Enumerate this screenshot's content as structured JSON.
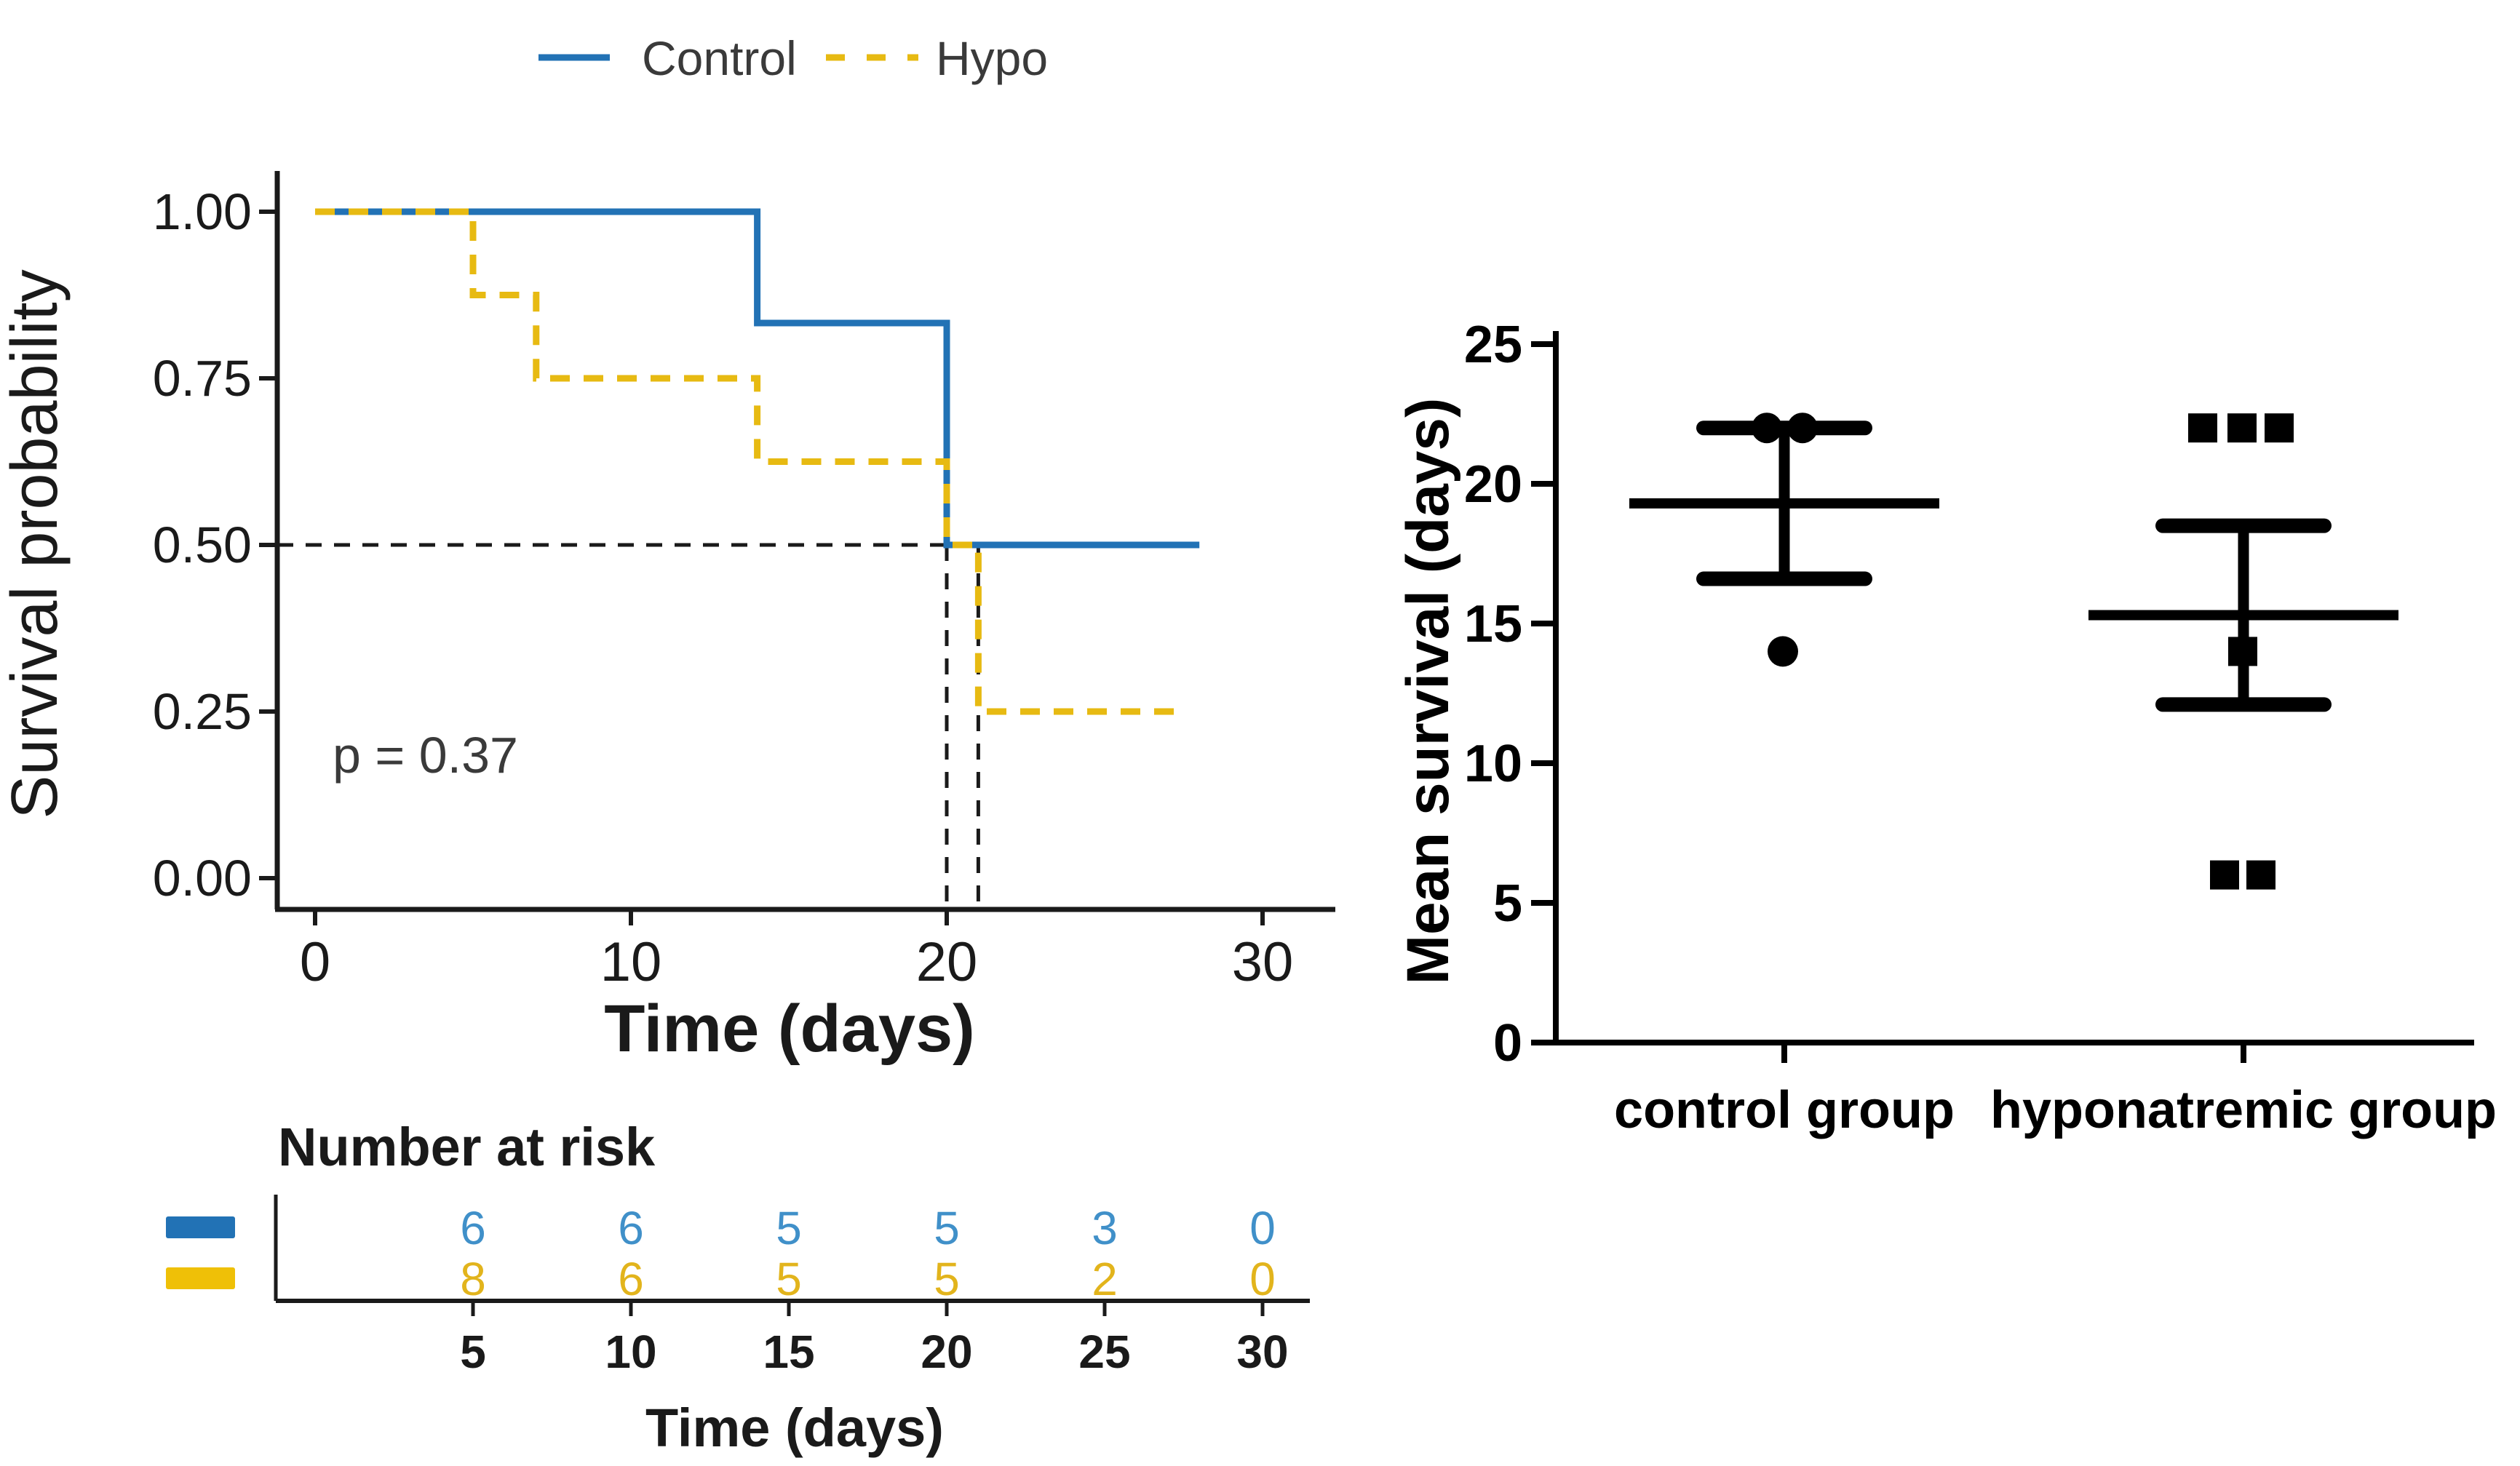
{
  "figure": {
    "background": "#ffffff"
  },
  "colors": {
    "control_blue": "#2272B5",
    "hypo_yellow": "#E7BA12",
    "risk_blue_number": "#4090C9",
    "risk_yellow_number": "#E2B41C",
    "risk_swatch_blue": "#2272B5",
    "risk_swatch_yellow": "#EFC007",
    "axis_black": "#1a1a1a",
    "legend_text": "#3a3a3a",
    "marker_black": "#000000"
  },
  "chart_data": [
    {
      "type": "line",
      "subtype": "kaplan-meier-survival",
      "legend": {
        "position": "top",
        "entries": [
          {
            "label": "Control",
            "color": "#2272B5",
            "style": "solid"
          },
          {
            "label": "Hypo",
            "color": "#E7BA12",
            "style": "dashed"
          }
        ]
      },
      "xlabel": "Time (days)",
      "ylabel": "Survival probability",
      "xlim": [
        0,
        30
      ],
      "ylim": [
        0,
        1
      ],
      "xticks": [
        0,
        10,
        20,
        30
      ],
      "xtick_labels": [
        "0",
        "10",
        "20",
        "30"
      ],
      "yticks": [
        1.0,
        0.75,
        0.5,
        0.25,
        0.0
      ],
      "ytick_labels": [
        "1.00",
        "0.75",
        "0.50",
        "0.25",
        "0.00"
      ],
      "grid": false,
      "annotation": {
        "text": "p = 0.37"
      },
      "median_reference": {
        "y": 0.5,
        "x_verticals": [
          20,
          21
        ]
      },
      "series": [
        {
          "name": "Control",
          "color": "#2272B5",
          "dash": false,
          "steps": [
            [
              0,
              1
            ],
            [
              14,
              1
            ],
            [
              14,
              0.833
            ],
            [
              20,
              0.833
            ],
            [
              20,
              0.5
            ],
            [
              28,
              0.5
            ]
          ]
        },
        {
          "name": "Hypo",
          "color": "#E7BA12",
          "dash": true,
          "steps": [
            [
              0,
              1
            ],
            [
              5,
              1
            ],
            [
              5,
              0.875
            ],
            [
              7,
              0.875
            ],
            [
              7,
              0.75
            ],
            [
              14,
              0.75
            ],
            [
              14,
              0.625
            ],
            [
              20,
              0.625
            ],
            [
              20,
              0.5
            ],
            [
              21,
              0.5
            ],
            [
              21,
              0.25
            ],
            [
              27.5,
              0.25
            ]
          ]
        }
      ],
      "risk_table": {
        "title": "Number at risk",
        "xlabel": "Time (days)",
        "times": [
          5,
          10,
          15,
          20,
          25,
          30
        ],
        "time_labels": [
          "5",
          "10",
          "15",
          "20",
          "25",
          "30"
        ],
        "rows": [
          {
            "name": "Control",
            "number_color": "#4090C9",
            "swatch_color": "#2272B5",
            "values": [
              "6",
              "6",
              "5",
              "5",
              "3",
              "0"
            ]
          },
          {
            "name": "Hypo",
            "number_color": "#E2B41C",
            "swatch_color": "#EFC007",
            "values": [
              "8",
              "6",
              "5",
              "5",
              "2",
              "0"
            ]
          }
        ]
      }
    },
    {
      "type": "scatter",
      "subtype": "column-scatter-mean-sem",
      "ylabel": "Mean survival (days)",
      "ylim": [
        0,
        25
      ],
      "yticks": [
        0,
        5,
        10,
        15,
        20,
        25
      ],
      "ytick_labels": [
        "0",
        "5",
        "10",
        "15",
        "20",
        "25"
      ],
      "categories": [
        "control group",
        "hyponatremic group"
      ],
      "marker_color": "#000000",
      "groups": [
        {
          "name": "control group",
          "marker": "circle",
          "values": [
            22,
            22,
            14
          ],
          "mean": 19.3,
          "sem_upper": 22.0,
          "sem_lower": 16.6
        },
        {
          "name": "hyponatremic group",
          "marker": "square",
          "values": [
            22,
            22,
            22,
            14,
            6,
            6
          ],
          "mean": 15.3,
          "sem_upper": 18.5,
          "sem_lower": 12.1
        }
      ]
    }
  ]
}
